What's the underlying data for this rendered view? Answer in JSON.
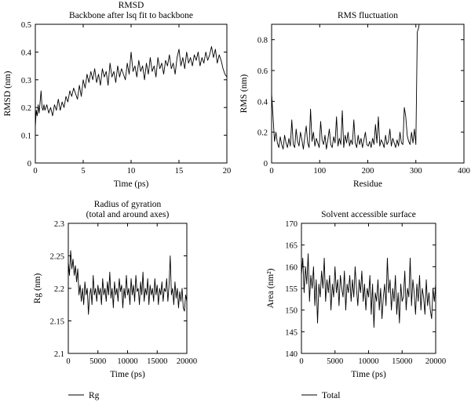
{
  "chart_data": [
    {
      "id": "rmsd",
      "type": "line",
      "title": [
        "RMSD",
        "Backbone after lsq fit to backbone"
      ],
      "xlabel": "Time (ps)",
      "ylabel": "RMSD (nm)",
      "xlim": [
        0,
        20
      ],
      "ylim": [
        0,
        0.5
      ],
      "xticks": [
        0,
        5,
        10,
        15,
        20
      ],
      "yticks": [
        0,
        0.1,
        0.2,
        0.3,
        0.4,
        0.5
      ],
      "xtick_labels": [
        "0",
        "5",
        "10",
        "15",
        "20"
      ],
      "ytick_labels": [
        "0",
        "0.1",
        "0.2",
        "0.3",
        "0.4",
        "0.5"
      ],
      "grid": false,
      "series": [
        {
          "x": [
            0,
            0.1,
            0.2,
            0.3,
            0.4,
            0.5,
            0.6,
            0.7,
            0.8,
            0.9,
            1.0,
            1.2,
            1.4,
            1.6,
            1.8,
            2.0,
            2.2,
            2.4,
            2.6,
            2.8,
            3.0,
            3.2,
            3.4,
            3.6,
            3.8,
            4.0,
            4.2,
            4.4,
            4.6,
            4.8,
            5.0,
            5.2,
            5.4,
            5.6,
            5.8,
            6.0,
            6.2,
            6.4,
            6.6,
            6.8,
            7.0,
            7.2,
            7.4,
            7.6,
            7.8,
            8.0,
            8.2,
            8.4,
            8.6,
            8.8,
            9.0,
            9.2,
            9.4,
            9.6,
            9.8,
            10.0,
            10.2,
            10.4,
            10.6,
            10.8,
            11.0,
            11.2,
            11.4,
            11.6,
            11.8,
            12.0,
            12.2,
            12.4,
            12.6,
            12.8,
            13.0,
            13.2,
            13.4,
            13.6,
            13.8,
            14.0,
            14.2,
            14.4,
            14.6,
            14.8,
            15.0,
            15.2,
            15.4,
            15.6,
            15.8,
            16.0,
            16.2,
            16.4,
            16.6,
            16.8,
            17.0,
            17.2,
            17.4,
            17.6,
            17.8,
            18.0,
            18.2,
            18.4,
            18.6,
            18.8,
            19.0,
            19.2,
            19.4,
            19.6,
            19.8,
            20.0
          ],
          "y": [
            0.13,
            0.19,
            0.17,
            0.21,
            0.18,
            0.22,
            0.26,
            0.2,
            0.19,
            0.21,
            0.19,
            0.21,
            0.18,
            0.2,
            0.17,
            0.21,
            0.19,
            0.23,
            0.19,
            0.22,
            0.2,
            0.24,
            0.22,
            0.26,
            0.24,
            0.27,
            0.25,
            0.23,
            0.28,
            0.24,
            0.3,
            0.27,
            0.32,
            0.29,
            0.33,
            0.3,
            0.34,
            0.29,
            0.32,
            0.28,
            0.34,
            0.31,
            0.33,
            0.28,
            0.36,
            0.31,
            0.33,
            0.29,
            0.35,
            0.31,
            0.34,
            0.32,
            0.3,
            0.36,
            0.32,
            0.4,
            0.33,
            0.35,
            0.31,
            0.37,
            0.33,
            0.35,
            0.3,
            0.36,
            0.32,
            0.38,
            0.33,
            0.35,
            0.31,
            0.38,
            0.34,
            0.36,
            0.32,
            0.37,
            0.35,
            0.39,
            0.34,
            0.36,
            0.32,
            0.38,
            0.41,
            0.35,
            0.38,
            0.34,
            0.4,
            0.36,
            0.38,
            0.35,
            0.39,
            0.37,
            0.4,
            0.35,
            0.38,
            0.36,
            0.4,
            0.37,
            0.39,
            0.42,
            0.38,
            0.41,
            0.36,
            0.39,
            0.37,
            0.34,
            0.32,
            0.31
          ]
        }
      ]
    },
    {
      "id": "rmsf",
      "type": "line",
      "title": [
        "RMS fluctuation"
      ],
      "xlabel": "Residue",
      "ylabel": "RMS (nm)",
      "xlim": [
        0,
        400
      ],
      "ylim": [
        0,
        0.9
      ],
      "xticks": [
        0,
        100,
        200,
        300,
        400
      ],
      "yticks": [
        0,
        0.2,
        0.4,
        0.6,
        0.8
      ],
      "xtick_labels": [
        "0",
        "100",
        "200",
        "300",
        "400"
      ],
      "ytick_labels": [
        "0",
        "0.2",
        "0.4",
        "0.6",
        "0.8"
      ],
      "grid": false,
      "series": [
        {
          "x": [
            0,
            3,
            6,
            9,
            12,
            15,
            18,
            21,
            24,
            27,
            30,
            33,
            36,
            39,
            42,
            45,
            48,
            51,
            54,
            57,
            60,
            63,
            66,
            69,
            72,
            75,
            78,
            81,
            84,
            87,
            90,
            93,
            96,
            99,
            102,
            105,
            108,
            111,
            114,
            117,
            120,
            123,
            126,
            129,
            132,
            135,
            138,
            141,
            144,
            147,
            150,
            153,
            156,
            159,
            162,
            165,
            168,
            171,
            174,
            177,
            180,
            183,
            186,
            189,
            192,
            195,
            198,
            201,
            204,
            207,
            210,
            213,
            216,
            219,
            222,
            225,
            228,
            231,
            234,
            237,
            240,
            243,
            246,
            249,
            252,
            255,
            258,
            261,
            264,
            267,
            270,
            273,
            276,
            279,
            282,
            285,
            288,
            291,
            294,
            297,
            300,
            303,
            306,
            309
          ],
          "y": [
            0.45,
            0.3,
            0.14,
            0.2,
            0.13,
            0.1,
            0.17,
            0.12,
            0.09,
            0.18,
            0.13,
            0.1,
            0.16,
            0.11,
            0.28,
            0.12,
            0.1,
            0.22,
            0.14,
            0.11,
            0.2,
            0.15,
            0.09,
            0.17,
            0.24,
            0.13,
            0.1,
            0.35,
            0.14,
            0.2,
            0.11,
            0.16,
            0.13,
            0.1,
            0.27,
            0.15,
            0.12,
            0.18,
            0.09,
            0.15,
            0.22,
            0.12,
            0.1,
            0.17,
            0.13,
            0.3,
            0.11,
            0.16,
            0.12,
            0.34,
            0.1,
            0.18,
            0.13,
            0.2,
            0.11,
            0.15,
            0.12,
            0.28,
            0.13,
            0.1,
            0.18,
            0.12,
            0.16,
            0.1,
            0.15,
            0.2,
            0.12,
            0.11,
            0.14,
            0.1,
            0.16,
            0.12,
            0.25,
            0.13,
            0.3,
            0.11,
            0.15,
            0.13,
            0.1,
            0.18,
            0.12,
            0.14,
            0.22,
            0.11,
            0.16,
            0.13,
            0.1,
            0.15,
            0.11,
            0.2,
            0.13,
            0.12,
            0.36,
            0.3,
            0.18,
            0.14,
            0.12,
            0.2,
            0.13,
            0.22,
            0.12,
            0.85,
            0.88,
            0.95
          ]
        }
      ]
    },
    {
      "id": "rg",
      "type": "line",
      "title": [
        "Radius of gyration",
        "(total and around axes)"
      ],
      "xlabel": "Time (ps)",
      "ylabel": "Rg (nm)",
      "xlim": [
        0,
        20000
      ],
      "ylim": [
        2.1,
        2.3
      ],
      "xticks": [
        0,
        5000,
        10000,
        15000,
        20000
      ],
      "yticks": [
        2.1,
        2.15,
        2.2,
        2.25,
        2.3
      ],
      "xtick_labels": [
        "0",
        "5000",
        "10000",
        "15000",
        "20000"
      ],
      "ytick_labels": [
        "2.1",
        "2.15",
        "2.2",
        "2.25",
        "2.3"
      ],
      "grid": false,
      "legend": {
        "position": "bottom-left",
        "entries": [
          "Rg"
        ]
      },
      "series": [
        {
          "name": "Rg",
          "x": [
            0,
            200,
            400,
            600,
            800,
            1000,
            1200,
            1400,
            1600,
            1800,
            2000,
            2200,
            2400,
            2600,
            2800,
            3000,
            3200,
            3400,
            3600,
            3800,
            4000,
            4200,
            4400,
            4600,
            4800,
            5000,
            5200,
            5400,
            5600,
            5800,
            6000,
            6200,
            6400,
            6600,
            6800,
            7000,
            7200,
            7400,
            7600,
            7800,
            8000,
            8200,
            8400,
            8600,
            8800,
            9000,
            9200,
            9400,
            9600,
            9800,
            10000,
            10200,
            10400,
            10600,
            10800,
            11000,
            11200,
            11400,
            11600,
            11800,
            12000,
            12200,
            12400,
            12600,
            12800,
            13000,
            13200,
            13400,
            13600,
            13800,
            14000,
            14200,
            14400,
            14600,
            14800,
            15000,
            15200,
            15400,
            15600,
            15800,
            16000,
            16200,
            16400,
            16600,
            16800,
            17000,
            17200,
            17400,
            17600,
            17800,
            18000,
            18200,
            18400,
            18600,
            18800,
            19000,
            19200,
            19400,
            19600,
            19800,
            20000
          ],
          "y": [
            2.24,
            2.22,
            2.258,
            2.23,
            2.245,
            2.22,
            2.235,
            2.21,
            2.23,
            2.19,
            2.205,
            2.18,
            2.2,
            2.175,
            2.21,
            2.19,
            2.2,
            2.16,
            2.19,
            2.2,
            2.175,
            2.22,
            2.19,
            2.2,
            2.18,
            2.205,
            2.19,
            2.2,
            2.175,
            2.215,
            2.19,
            2.2,
            2.18,
            2.21,
            2.19,
            2.225,
            2.185,
            2.2,
            2.17,
            2.21,
            2.19,
            2.2,
            2.18,
            2.215,
            2.195,
            2.205,
            2.17,
            2.2,
            2.185,
            2.22,
            2.19,
            2.2,
            2.175,
            2.215,
            2.19,
            2.205,
            2.18,
            2.22,
            2.195,
            2.2,
            2.175,
            2.21,
            2.19,
            2.225,
            2.18,
            2.2,
            2.19,
            2.215,
            2.175,
            2.205,
            2.19,
            2.2,
            2.18,
            2.215,
            2.19,
            2.205,
            2.175,
            2.2,
            2.19,
            2.21,
            2.18,
            2.2,
            2.195,
            2.215,
            2.18,
            2.205,
            2.25,
            2.19,
            2.2,
            2.175,
            2.21,
            2.185,
            2.2,
            2.17,
            2.195,
            2.18,
            2.2,
            2.17,
            2.165,
            2.19,
            2.18
          ]
        }
      ]
    },
    {
      "id": "sas",
      "type": "line",
      "title": [
        "Solvent accessible surface"
      ],
      "xlabel": "Time (ps)",
      "ylabel": "Area (nm²)",
      "xlim": [
        0,
        20000
      ],
      "ylim": [
        140,
        170
      ],
      "xticks": [
        0,
        5000,
        10000,
        15000,
        20000
      ],
      "yticks": [
        140,
        145,
        150,
        155,
        160,
        165,
        170
      ],
      "xtick_labels": [
        "0",
        "5000",
        "10000",
        "15000",
        "20000"
      ],
      "ytick_labels": [
        "140",
        "145",
        "150",
        "155",
        "160",
        "165",
        "170"
      ],
      "grid": false,
      "legend": {
        "position": "bottom-left",
        "entries": [
          "Total"
        ]
      },
      "series": [
        {
          "name": "Total",
          "x": [
            0,
            200,
            400,
            600,
            800,
            1000,
            1200,
            1400,
            1600,
            1800,
            2000,
            2200,
            2400,
            2600,
            2800,
            3000,
            3200,
            3400,
            3600,
            3800,
            4000,
            4200,
            4400,
            4600,
            4800,
            5000,
            5200,
            5400,
            5600,
            5800,
            6000,
            6200,
            6400,
            6600,
            6800,
            7000,
            7200,
            7400,
            7600,
            7800,
            8000,
            8200,
            8400,
            8600,
            8800,
            9000,
            9200,
            9400,
            9600,
            9800,
            10000,
            10200,
            10400,
            10600,
            10800,
            11000,
            11200,
            11400,
            11600,
            11800,
            12000,
            12200,
            12400,
            12600,
            12800,
            13000,
            13200,
            13400,
            13600,
            13800,
            14000,
            14200,
            14400,
            14600,
            14800,
            15000,
            15200,
            15400,
            15600,
            15800,
            16000,
            16200,
            16400,
            16600,
            16800,
            17000,
            17200,
            17400,
            17600,
            17800,
            18000,
            18200,
            18400,
            18600,
            18800,
            19000,
            19200,
            19400,
            19600,
            19800,
            20000
          ],
          "y": [
            158,
            162,
            154,
            160,
            156,
            163,
            152,
            158,
            155,
            160,
            151,
            157,
            147,
            156,
            153,
            159,
            155,
            162,
            152,
            157,
            154,
            158,
            150,
            156,
            153,
            160,
            154,
            157,
            151,
            158,
            155,
            153,
            159,
            150,
            156,
            154,
            158,
            152,
            157,
            153,
            160,
            155,
            151,
            157,
            154,
            159,
            152,
            156,
            150,
            155,
            153,
            158,
            149,
            156,
            146,
            154,
            152,
            157,
            150,
            155,
            148,
            153,
            156,
            151,
            162,
            154,
            157,
            150,
            155,
            152,
            158,
            149,
            154,
            147,
            156,
            152,
            153,
            159,
            150,
            155,
            153,
            162,
            151,
            157,
            154,
            149,
            156,
            152,
            158,
            150,
            155,
            153,
            149,
            157,
            151,
            154,
            150,
            148,
            155,
            152,
            156
          ]
        }
      ]
    }
  ]
}
